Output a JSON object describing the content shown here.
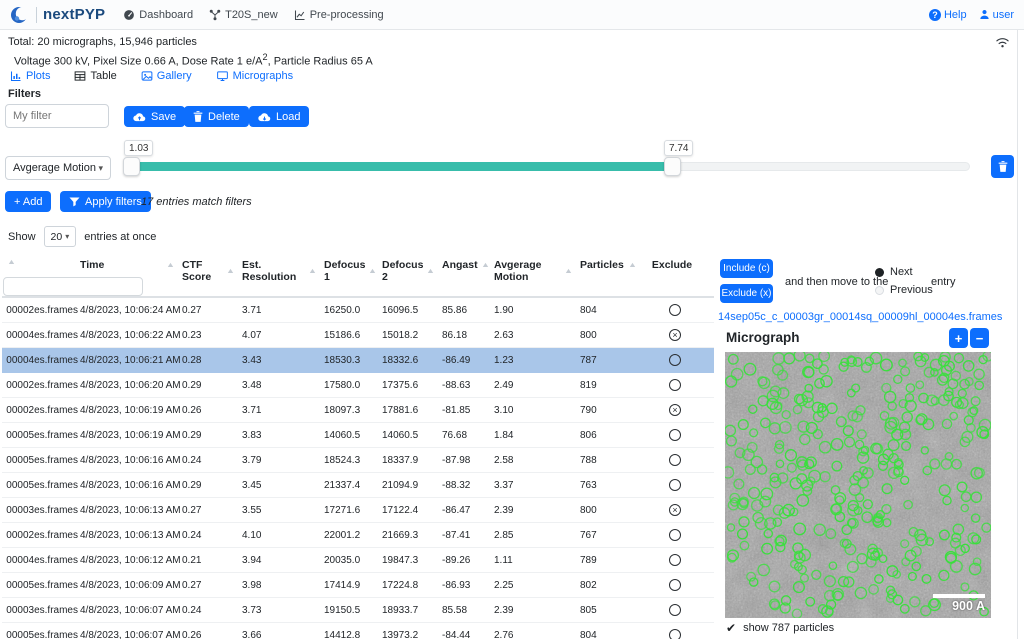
{
  "colors": {
    "primary": "#0d6efd",
    "teal": "#38bdab",
    "selected_row": "#a9c6e9",
    "particle_green": "#38e03b"
  },
  "navbar": {
    "brand": "nextPYP",
    "items": [
      {
        "icon": "gauge-icon",
        "label": "Dashboard"
      },
      {
        "icon": "project-icon",
        "label": "T20S_new"
      },
      {
        "icon": "chart-icon",
        "label": "Pre-processing"
      }
    ],
    "help": "Help",
    "user": "user"
  },
  "summary": {
    "total": "Total: 20 micrographs, 15,946 particles",
    "params_prefix": "Voltage 300 kV, Pixel Size 0.66 A, Dose Rate 1 e/A",
    "params_sup": "2",
    "params_suffix": ", Particle Radius 65 A"
  },
  "tabs": [
    {
      "label": "Plots",
      "icon": "plots-icon",
      "active": false
    },
    {
      "label": "Table",
      "icon": "table-icon",
      "active": true
    },
    {
      "label": "Gallery",
      "icon": "gallery-icon",
      "active": false
    },
    {
      "label": "Micrographs",
      "icon": "micrographs-icon",
      "active": false
    }
  ],
  "filters": {
    "title": "Filters",
    "name_placeholder": "My filter",
    "save_label": "Save",
    "delete_label": "Delete",
    "load_label": "Load",
    "slider": {
      "min_label": "1.03",
      "max_label": "7.74",
      "field": "Avgerage Motion"
    },
    "add_label": "+ Add",
    "apply_label": "Apply filters",
    "match_text": "17 entries match filters",
    "show_prefix": "Show",
    "show_count": "20",
    "show_suffix": "entries at once"
  },
  "table": {
    "columns": [
      {
        "label": "",
        "sortable": true
      },
      {
        "label": "Time",
        "sortable": true
      },
      {
        "label": "CTF Score",
        "sortable": true
      },
      {
        "label": "Est. Resolution",
        "sortable": true
      },
      {
        "label": "Defocus 1",
        "sortable": true
      },
      {
        "label": "Defocus 2",
        "sortable": true
      },
      {
        "label": "Angast",
        "sortable": true
      },
      {
        "label": "Avgerage Motion",
        "sortable": true
      },
      {
        "label": "Particles",
        "sortable": true
      },
      {
        "label": "Exclude",
        "sortable": false
      }
    ],
    "rows": [
      {
        "name": "00002es.frames",
        "time": "4/8/2023, 10:06:24 AM",
        "ctf": "0.27",
        "res": "3.71",
        "df1": "16250.0",
        "df2": "16096.5",
        "angast": "85.86",
        "motion": "1.90",
        "particles": "804",
        "excluded": false,
        "selected": false
      },
      {
        "name": "00004es.frames",
        "time": "4/8/2023, 10:06:22 AM",
        "ctf": "0.23",
        "res": "4.07",
        "df1": "15186.6",
        "df2": "15018.2",
        "angast": "86.18",
        "motion": "2.63",
        "particles": "800",
        "excluded": true,
        "selected": false
      },
      {
        "name": "00004es.frames",
        "time": "4/8/2023, 10:06:21 AM",
        "ctf": "0.28",
        "res": "3.43",
        "df1": "18530.3",
        "df2": "18332.6",
        "angast": "-86.49",
        "motion": "1.23",
        "particles": "787",
        "excluded": false,
        "selected": true
      },
      {
        "name": "00002es.frames",
        "time": "4/8/2023, 10:06:20 AM",
        "ctf": "0.29",
        "res": "3.48",
        "df1": "17580.0",
        "df2": "17375.6",
        "angast": "-88.63",
        "motion": "2.49",
        "particles": "819",
        "excluded": false,
        "selected": false
      },
      {
        "name": "00002es.frames",
        "time": "4/8/2023, 10:06:19 AM",
        "ctf": "0.26",
        "res": "3.71",
        "df1": "18097.3",
        "df2": "17881.6",
        "angast": "-81.85",
        "motion": "3.10",
        "particles": "790",
        "excluded": true,
        "selected": false
      },
      {
        "name": "00005es.frames",
        "time": "4/8/2023, 10:06:19 AM",
        "ctf": "0.29",
        "res": "3.83",
        "df1": "14060.5",
        "df2": "14060.5",
        "angast": "76.68",
        "motion": "1.84",
        "particles": "806",
        "excluded": false,
        "selected": false
      },
      {
        "name": "00005es.frames",
        "time": "4/8/2023, 10:06:16 AM",
        "ctf": "0.24",
        "res": "3.79",
        "df1": "18524.3",
        "df2": "18337.9",
        "angast": "-87.98",
        "motion": "2.58",
        "particles": "788",
        "excluded": false,
        "selected": false
      },
      {
        "name": "00005es.frames",
        "time": "4/8/2023, 10:06:16 AM",
        "ctf": "0.29",
        "res": "3.45",
        "df1": "21337.4",
        "df2": "21094.9",
        "angast": "-88.32",
        "motion": "3.37",
        "particles": "763",
        "excluded": false,
        "selected": false
      },
      {
        "name": "00003es.frames",
        "time": "4/8/2023, 10:06:13 AM",
        "ctf": "0.27",
        "res": "3.55",
        "df1": "17271.6",
        "df2": "17122.4",
        "angast": "-86.47",
        "motion": "2.39",
        "particles": "800",
        "excluded": true,
        "selected": false
      },
      {
        "name": "00002es.frames",
        "time": "4/8/2023, 10:06:13 AM",
        "ctf": "0.24",
        "res": "4.10",
        "df1": "22001.2",
        "df2": "21669.3",
        "angast": "-87.41",
        "motion": "2.85",
        "particles": "767",
        "excluded": false,
        "selected": false
      },
      {
        "name": "00004es.frames",
        "time": "4/8/2023, 10:06:12 AM",
        "ctf": "0.21",
        "res": "3.94",
        "df1": "20035.0",
        "df2": "19847.3",
        "angast": "-89.26",
        "motion": "1.11",
        "particles": "789",
        "excluded": false,
        "selected": false
      },
      {
        "name": "00005es.frames",
        "time": "4/8/2023, 10:06:09 AM",
        "ctf": "0.27",
        "res": "3.98",
        "df1": "17414.9",
        "df2": "17224.8",
        "angast": "-86.93",
        "motion": "2.25",
        "particles": "802",
        "excluded": false,
        "selected": false
      },
      {
        "name": "00003es.frames",
        "time": "4/8/2023, 10:06:07 AM",
        "ctf": "0.24",
        "res": "3.73",
        "df1": "19150.5",
        "df2": "18933.7",
        "angast": "85.58",
        "motion": "2.39",
        "particles": "805",
        "excluded": false,
        "selected": false
      },
      {
        "name": "00005es.frames",
        "time": "4/8/2023, 10:06:07 AM",
        "ctf": "0.26",
        "res": "3.66",
        "df1": "14412.8",
        "df2": "13973.2",
        "angast": "-84.44",
        "motion": "2.76",
        "particles": "804",
        "excluded": false,
        "selected": false
      }
    ]
  },
  "right_panel": {
    "include_label": "Include (c)",
    "exclude_label": "Exclude (x)",
    "move_text": "and then move to the",
    "next_label": "Next",
    "previous_label": "Previous",
    "entry_label": "entry",
    "file_link": "14sep05c_c_00003gr_00014sq_00009hl_00004es.frames",
    "micrograph_title": "Micrograph",
    "zoom_in": "+",
    "zoom_out": "−",
    "scale_label": "900 A",
    "show_particles_label": "show 787 particles"
  }
}
